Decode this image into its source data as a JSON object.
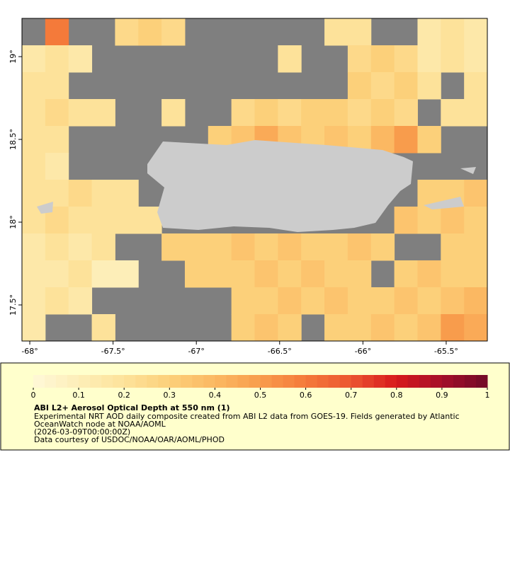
{
  "chart_data": {
    "type": "raster-map",
    "xlim": [
      -68.047,
      -65.253
    ],
    "ylim": [
      17.282,
      19.231
    ],
    "xticks": [
      {
        "value": -68,
        "label": "-68°"
      },
      {
        "value": -67.5,
        "label": "-67.5°"
      },
      {
        "value": -67,
        "label": "-67°"
      },
      {
        "value": -66.5,
        "label": "-66.5°"
      },
      {
        "value": -66,
        "label": "-66°"
      },
      {
        "value": -65.5,
        "label": "-65.5°"
      }
    ],
    "yticks": [
      {
        "value": 17.5,
        "label": "17.5°"
      },
      {
        "value": 18,
        "label": "18°"
      },
      {
        "value": 18.5,
        "label": "18.5°"
      },
      {
        "value": 19,
        "label": "19°"
      }
    ],
    "clim": [
      0,
      1
    ],
    "cticks": [
      0,
      0.1,
      0.2,
      0.3,
      0.4,
      0.5,
      0.6,
      0.7,
      0.8,
      0.9,
      1
    ],
    "colormap": [
      "#fff8d8",
      "#fdeeb8",
      "#fde29a",
      "#fcd07a",
      "#fbb862",
      "#f89c4c",
      "#f47a3a",
      "#ec5530",
      "#d7191c",
      "#a50f2a",
      "#700a26"
    ],
    "nodata_color": "#7f7f7f",
    "land_color": "#cccccc",
    "grid": {
      "rows": [
        [
          null,
          0.6,
          null,
          null,
          0.25,
          0.3,
          0.25,
          null,
          null,
          null,
          null,
          null,
          null,
          0.2,
          0.2,
          null,
          null,
          0.15,
          0.2,
          0.15
        ],
        [
          0.15,
          0.2,
          0.15,
          null,
          null,
          null,
          null,
          null,
          null,
          null,
          null,
          0.2,
          null,
          null,
          0.25,
          0.3,
          0.25,
          0.15,
          0.2,
          0.15
        ],
        [
          0.2,
          0.2,
          null,
          null,
          null,
          null,
          null,
          null,
          null,
          null,
          null,
          null,
          null,
          null,
          0.3,
          0.25,
          0.3,
          0.2,
          null,
          0.2
        ],
        [
          0.2,
          0.25,
          0.2,
          0.2,
          null,
          null,
          0.2,
          null,
          null,
          0.25,
          0.3,
          0.25,
          0.3,
          0.3,
          0.25,
          0.3,
          0.25,
          null,
          0.2,
          0.2
        ],
        [
          0.2,
          0.2,
          null,
          null,
          null,
          null,
          null,
          null,
          0.3,
          0.35,
          0.45,
          0.35,
          0.3,
          0.35,
          0.3,
          0.4,
          0.5,
          0.3,
          null,
          null
        ],
        [
          0.2,
          0.15,
          null,
          null,
          null,
          null,
          null,
          null,
          null,
          null,
          null,
          null,
          null,
          null,
          null,
          null,
          null,
          null,
          null,
          null
        ],
        [
          0.2,
          0.2,
          0.25,
          0.2,
          0.2,
          null,
          null,
          null,
          null,
          null,
          null,
          null,
          null,
          null,
          null,
          null,
          null,
          0.3,
          0.3,
          0.35
        ],
        [
          0.2,
          0.25,
          0.2,
          0.2,
          0.2,
          0.2,
          null,
          null,
          null,
          null,
          null,
          null,
          null,
          null,
          null,
          null,
          0.35,
          0.3,
          0.35,
          0.3
        ],
        [
          0.15,
          0.2,
          0.15,
          0.2,
          null,
          null,
          0.3,
          0.3,
          0.3,
          0.35,
          0.3,
          0.35,
          0.3,
          0.3,
          0.35,
          0.3,
          null,
          null,
          0.3,
          0.3
        ],
        [
          0.15,
          0.15,
          0.2,
          0.1,
          0.1,
          null,
          null,
          0.3,
          0.3,
          0.3,
          0.35,
          0.3,
          0.35,
          0.3,
          0.3,
          null,
          0.3,
          0.35,
          0.3,
          0.3
        ],
        [
          0.15,
          0.2,
          0.15,
          null,
          null,
          null,
          null,
          null,
          null,
          0.3,
          0.3,
          0.35,
          0.3,
          0.35,
          0.3,
          0.3,
          0.35,
          0.3,
          0.35,
          0.4
        ],
        [
          0.15,
          null,
          null,
          0.2,
          null,
          null,
          null,
          null,
          null,
          0.3,
          0.35,
          0.3,
          null,
          0.3,
          0.3,
          0.35,
          0.3,
          0.35,
          0.5,
          0.45
        ]
      ]
    },
    "title": "ABI L2+ Aerosol Optical Depth at 550 nm (1)",
    "description": [
      "Experimental NRT AOD daily composite created from ABI L2 data from GOES-19. Fields generated by Atlantic",
      "OceanWatch node at NOAA/AOML",
      "(2026-03-09T00:00:00Z)",
      "Data courtesy of USDOC/NOAA/OAR/AOML/PHOD"
    ]
  }
}
